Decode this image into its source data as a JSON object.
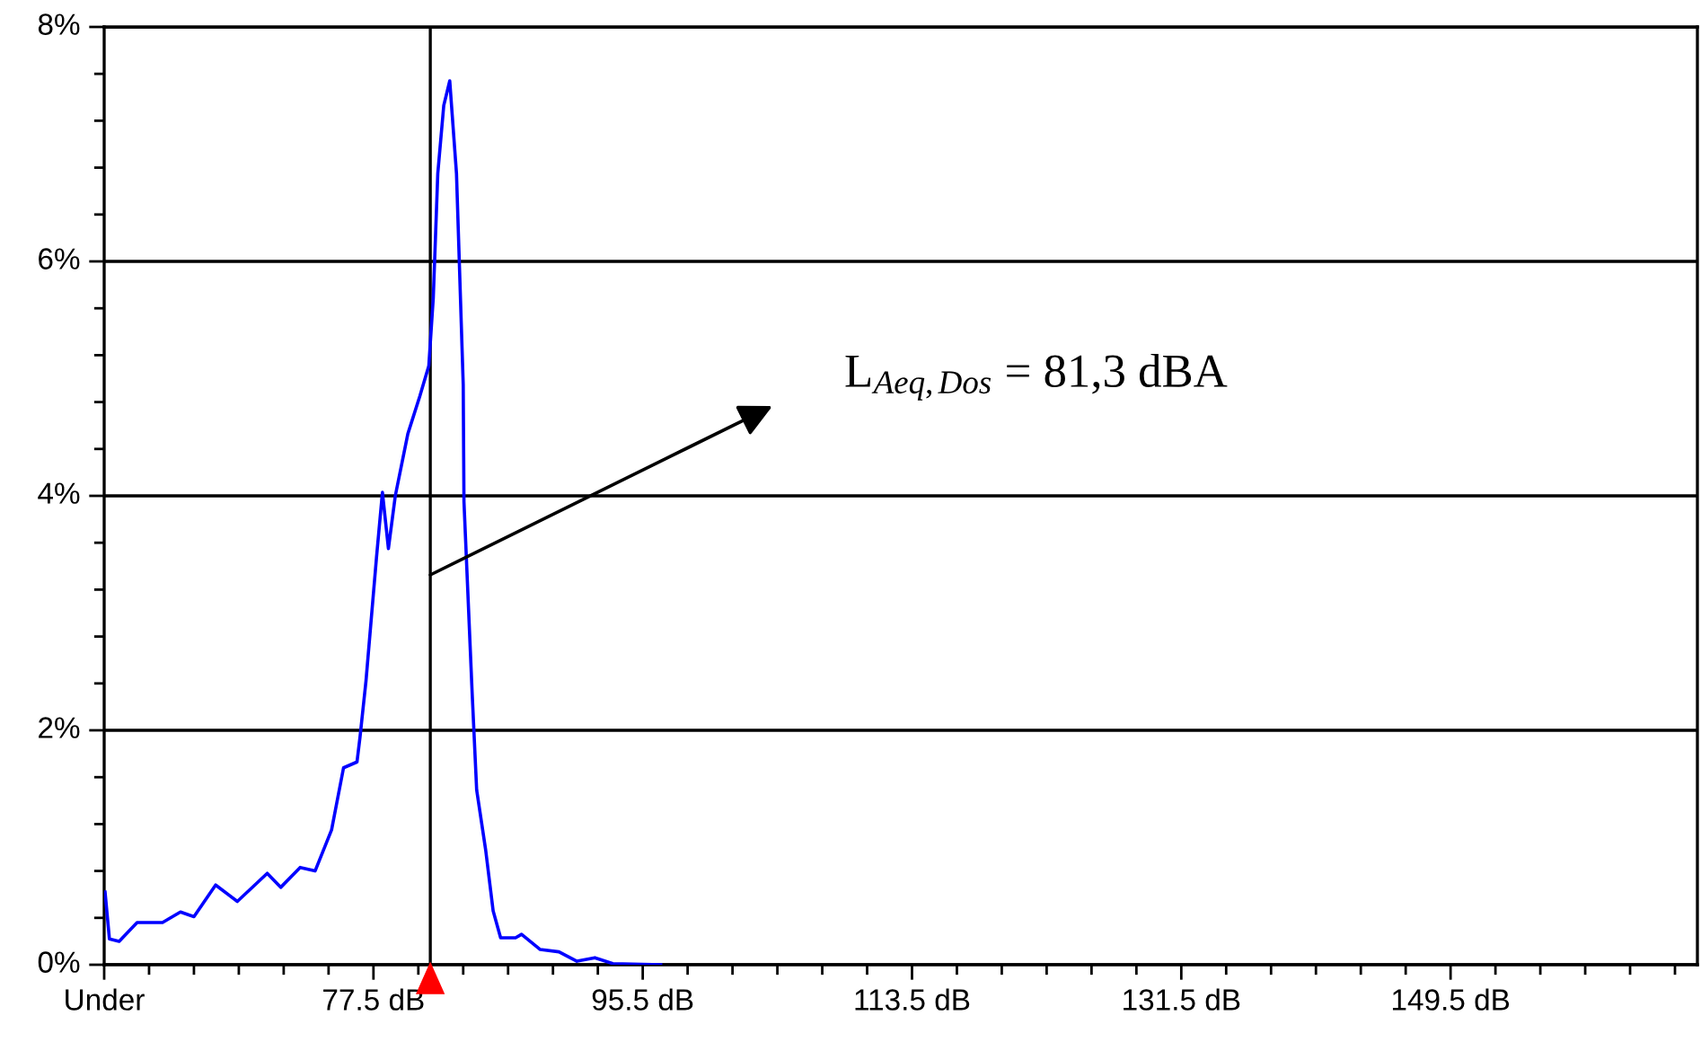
{
  "chart_data": {
    "type": "line",
    "color": "#0000ff",
    "x": [
      59.56,
      59.85,
      60.5,
      61.7,
      63.4,
      64.6,
      65.5,
      66.95,
      68.4,
      70.4,
      71.3,
      72.6,
      73.6,
      74.7,
      75.5,
      76.4,
      76.6,
      77.0,
      77.7,
      78.1,
      78.5,
      78.96,
      79.8,
      80.6,
      81.2,
      81.5,
      81.8,
      82.2,
      82.6,
      83.05,
      83.5,
      83.55,
      84.1,
      84.4,
      85.0,
      85.5,
      86.0,
      87.0,
      87.4,
      88.65,
      89.9,
      91.1,
      92.3,
      93.5,
      96.7
    ],
    "values": [
      0.62,
      0.22,
      0.2,
      0.36,
      0.36,
      0.45,
      0.41,
      0.68,
      0.54,
      0.78,
      0.66,
      0.83,
      0.8,
      1.15,
      1.68,
      1.73,
      1.94,
      2.42,
      3.47,
      4.03,
      3.55,
      4.0,
      4.53,
      4.85,
      5.11,
      5.69,
      6.75,
      7.33,
      7.54,
      6.75,
      4.95,
      3.95,
      2.31,
      1.49,
      0.98,
      0.46,
      0.23,
      0.23,
      0.26,
      0.13,
      0.11,
      0.03,
      0.06,
      0.01,
      0.0
    ],
    "xlim": [
      59.5,
      166
    ],
    "xticks": [
      {
        "value": 59.5,
        "label": "Under"
      },
      {
        "value": 62.5,
        "label": null
      },
      {
        "value": 65.5,
        "label": null
      },
      {
        "value": 68.5,
        "label": null
      },
      {
        "value": 71.5,
        "label": null
      },
      {
        "value": 74.5,
        "label": null
      },
      {
        "value": 77.5,
        "label": "77.5 dB"
      },
      {
        "value": 80.5,
        "label": null
      },
      {
        "value": 83.5,
        "label": null
      },
      {
        "value": 86.5,
        "label": null
      },
      {
        "value": 89.5,
        "label": null
      },
      {
        "value": 92.5,
        "label": null
      },
      {
        "value": 95.5,
        "label": "95.5 dB"
      },
      {
        "value": 98.5,
        "label": null
      },
      {
        "value": 101.5,
        "label": null
      },
      {
        "value": 104.5,
        "label": null
      },
      {
        "value": 107.5,
        "label": null
      },
      {
        "value": 110.5,
        "label": null
      },
      {
        "value": 113.5,
        "label": "113.5 dB"
      },
      {
        "value": 116.5,
        "label": null
      },
      {
        "value": 119.5,
        "label": null
      },
      {
        "value": 122.5,
        "label": null
      },
      {
        "value": 125.5,
        "label": null
      },
      {
        "value": 128.5,
        "label": null
      },
      {
        "value": 131.5,
        "label": "131.5 dB"
      },
      {
        "value": 134.5,
        "label": null
      },
      {
        "value": 137.5,
        "label": null
      },
      {
        "value": 140.5,
        "label": null
      },
      {
        "value": 143.5,
        "label": null
      },
      {
        "value": 146.5,
        "label": null
      },
      {
        "value": 149.5,
        "label": "149.5 dB"
      },
      {
        "value": 152.5,
        "label": null
      },
      {
        "value": 155.5,
        "label": null
      },
      {
        "value": 158.5,
        "label": null
      },
      {
        "value": 161.5,
        "label": null
      },
      {
        "value": 164.5,
        "label": null
      }
    ],
    "ylim": [
      0,
      8
    ],
    "yticks": [
      {
        "value": 0,
        "label": "0%"
      },
      {
        "value": 0.4,
        "label": null
      },
      {
        "value": 0.8,
        "label": null
      },
      {
        "value": 1.2,
        "label": null
      },
      {
        "value": 1.6,
        "label": null
      },
      {
        "value": 2,
        "label": "2%"
      },
      {
        "value": 2.4,
        "label": null
      },
      {
        "value": 2.8,
        "label": null
      },
      {
        "value": 3.2,
        "label": null
      },
      {
        "value": 3.6,
        "label": null
      },
      {
        "value": 4,
        "label": "4%"
      },
      {
        "value": 4.4,
        "label": null
      },
      {
        "value": 4.8,
        "label": null
      },
      {
        "value": 5.2,
        "label": null
      },
      {
        "value": 5.6,
        "label": null
      },
      {
        "value": 6,
        "label": "6%"
      },
      {
        "value": 6.4,
        "label": null
      },
      {
        "value": 6.8,
        "label": null
      },
      {
        "value": 7.2,
        "label": null
      },
      {
        "value": 7.6,
        "label": null
      },
      {
        "value": 8,
        "label": "8%"
      }
    ],
    "grid": "y",
    "ref_lines": [
      {
        "axis": "x",
        "value": 81.3,
        "color": "#000000"
      }
    ],
    "annotations": [
      "L$_{Aeq,Dos}$ = 81,3 dBA"
    ]
  }
}
